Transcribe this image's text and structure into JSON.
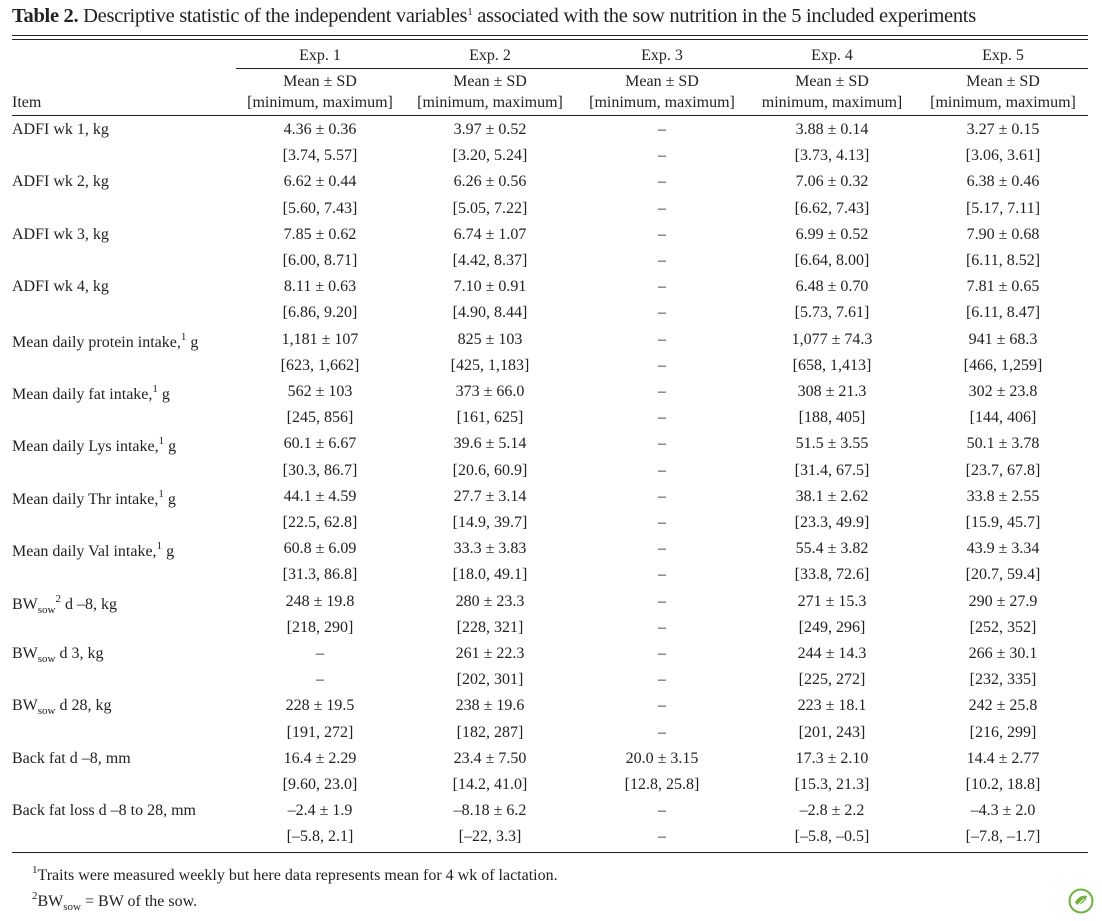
{
  "table": {
    "title": {
      "label": "Table 2.",
      "segments": [
        {
          "text": "Descriptive statistic of the independent variables"
        },
        {
          "sup": "1"
        },
        {
          "text": " associated with the sow nutrition in the 5 included experiments"
        }
      ]
    },
    "item_header": "Item",
    "experiments": [
      "Exp. 1",
      "Exp. 2",
      "Exp. 3",
      "Exp. 4",
      "Exp. 5"
    ],
    "stat_header": [
      "Mean ± SD",
      "Mean ± SD",
      "Mean ± SD",
      "Mean ± SD",
      "Mean ± SD"
    ],
    "range_header": [
      "[minimum, maximum]",
      "[minimum, maximum]",
      "[minimum, maximum]",
      "minimum, maximum]",
      "[minimum, maximum]"
    ],
    "rows": [
      {
        "label": [
          {
            "text": "ADFI wk 1, kg"
          }
        ],
        "mean": [
          "4.36 ± 0.36",
          "3.97 ± 0.52",
          "–",
          "3.88 ± 0.14",
          "3.27 ± 0.15"
        ],
        "range": [
          "[3.74, 5.57]",
          "[3.20, 5.24]",
          "–",
          "[3.73, 4.13]",
          "[3.06, 3.61]"
        ]
      },
      {
        "label": [
          {
            "text": "ADFI wk 2, kg"
          }
        ],
        "mean": [
          "6.62 ± 0.44",
          "6.26 ± 0.56",
          "–",
          "7.06 ± 0.32",
          "6.38 ± 0.46"
        ],
        "range": [
          "[5.60, 7.43]",
          "[5.05, 7.22]",
          "–",
          "[6.62, 7.43]",
          "[5.17, 7.11]"
        ]
      },
      {
        "label": [
          {
            "text": "ADFI wk 3, kg"
          }
        ],
        "mean": [
          "7.85 ± 0.62",
          "6.74 ± 1.07",
          "–",
          "6.99 ± 0.52",
          "7.90 ± 0.68"
        ],
        "range": [
          "[6.00, 8.71]",
          "[4.42, 8.37]",
          "–",
          "[6.64, 8.00]",
          "[6.11, 8.52]"
        ]
      },
      {
        "label": [
          {
            "text": "ADFI wk 4, kg"
          }
        ],
        "mean": [
          "8.11 ± 0.63",
          "7.10 ± 0.91",
          "–",
          "6.48 ± 0.70",
          "7.81 ± 0.65"
        ],
        "range": [
          "[6.86, 9.20]",
          "[4.90, 8.44]",
          "–",
          "[5.73, 7.61]",
          "[6.11, 8.47]"
        ]
      },
      {
        "label": [
          {
            "text": "Mean daily protein intake,"
          },
          {
            "sup": "1"
          },
          {
            "text": " g"
          }
        ],
        "mean": [
          "1,181 ± 107",
          "825 ± 103",
          "–",
          "1,077 ± 74.3",
          "941 ± 68.3"
        ],
        "range": [
          "[623, 1,662]",
          "[425, 1,183]",
          "–",
          "[658, 1,413]",
          "[466, 1,259]"
        ]
      },
      {
        "label": [
          {
            "text": "Mean daily fat intake,"
          },
          {
            "sup": "1"
          },
          {
            "text": " g"
          }
        ],
        "mean": [
          "562 ± 103",
          "373 ± 66.0",
          "–",
          "308 ± 21.3",
          "302 ± 23.8"
        ],
        "range": [
          "[245, 856]",
          "[161, 625]",
          "–",
          "[188, 405]",
          "[144, 406]"
        ]
      },
      {
        "label": [
          {
            "text": "Mean daily Lys intake,"
          },
          {
            "sup": "1"
          },
          {
            "text": " g"
          }
        ],
        "mean": [
          "60.1 ± 6.67",
          "39.6 ± 5.14",
          "–",
          "51.5 ± 3.55",
          "50.1 ± 3.78"
        ],
        "range": [
          "[30.3, 86.7]",
          "[20.6, 60.9]",
          "–",
          "[31.4, 67.5]",
          "[23.7, 67.8]"
        ]
      },
      {
        "label": [
          {
            "text": "Mean daily Thr intake,"
          },
          {
            "sup": "1"
          },
          {
            "text": " g"
          }
        ],
        "mean": [
          "44.1 ± 4.59",
          "27.7 ± 3.14",
          "–",
          "38.1 ± 2.62",
          "33.8 ± 2.55"
        ],
        "range": [
          "[22.5, 62.8]",
          "[14.9, 39.7]",
          "–",
          "[23.3, 49.9]",
          "[15.9, 45.7]"
        ]
      },
      {
        "label": [
          {
            "text": "Mean daily Val intake,"
          },
          {
            "sup": "1"
          },
          {
            "text": " g"
          }
        ],
        "mean": [
          "60.8 ± 6.09",
          "33.3 ± 3.83",
          "–",
          "55.4 ± 3.82",
          "43.9 ± 3.34"
        ],
        "range": [
          "[31.3, 86.8]",
          "[18.0, 49.1]",
          "–",
          "[33.8, 72.6]",
          "[20.7, 59.4]"
        ]
      },
      {
        "label": [
          {
            "text": "BW"
          },
          {
            "sub": "sow"
          },
          {
            "sup": "2"
          },
          {
            "text": " d –8, kg"
          }
        ],
        "mean": [
          "248 ± 19.8",
          "280 ± 23.3",
          "–",
          "271 ± 15.3",
          "290 ± 27.9"
        ],
        "range": [
          "[218, 290]",
          "[228, 321]",
          "–",
          "[249, 296]",
          "[252, 352]"
        ]
      },
      {
        "label": [
          {
            "text": "BW"
          },
          {
            "sub": "sow"
          },
          {
            "text": " d 3, kg"
          }
        ],
        "mean": [
          "–",
          "261 ± 22.3",
          "–",
          "244 ± 14.3",
          "266 ± 30.1"
        ],
        "range": [
          "–",
          "[202, 301]",
          "–",
          "[225, 272]",
          "[232, 335]"
        ]
      },
      {
        "label": [
          {
            "text": "BW"
          },
          {
            "sub": "sow"
          },
          {
            "text": " d 28, kg"
          }
        ],
        "mean": [
          "228 ± 19.5",
          "238 ± 19.6",
          "–",
          "223 ± 18.1",
          "242 ± 25.8"
        ],
        "range": [
          "[191, 272]",
          "[182, 287]",
          "–",
          "[201, 243]",
          "[216, 299]"
        ]
      },
      {
        "label": [
          {
            "text": "Back fat d –8, mm"
          }
        ],
        "mean": [
          "16.4 ± 2.29",
          "23.4 ± 7.50",
          "20.0 ± 3.15",
          "17.3 ± 2.10",
          "14.4 ± 2.77"
        ],
        "range": [
          "[9.60, 23.0]",
          "[14.2, 41.0]",
          "[12.8, 25.8]",
          "[15.3, 21.3]",
          "[10.2, 18.8]"
        ]
      },
      {
        "label": [
          {
            "text": "Back fat loss d –8 to 28, mm"
          }
        ],
        "mean": [
          "–2.4 ± 1.9",
          "–8.18 ± 6.2",
          "–",
          "–2.8 ± 2.2",
          "–4.3 ± 2.0"
        ],
        "range": [
          "[–5.8, 2.1]",
          "[–22, 3.3]",
          "–",
          "[–5.8, –0.5]",
          "[–7.8, –1.7]"
        ]
      }
    ],
    "footnotes": [
      [
        {
          "sup": "1"
        },
        {
          "text": "Traits were measured weekly but here data represents mean for 4 wk of lactation."
        }
      ],
      [
        {
          "sup": "2"
        },
        {
          "text": "BW"
        },
        {
          "sub": "sow"
        },
        {
          "text": " = BW of the sow."
        }
      ]
    ]
  }
}
